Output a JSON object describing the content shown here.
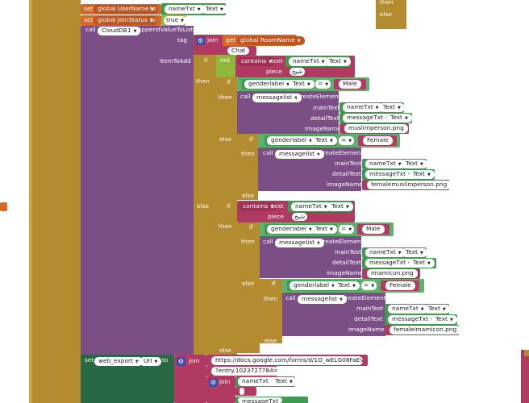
{
  "stub_right": {
    "then": "then",
    "else": "else"
  },
  "outer": {
    "else": "else"
  },
  "set1": {
    "kw": "set",
    "var": "global UserName",
    "to": "to",
    "comp": "nameTxt",
    "prop": "Text"
  },
  "set2": {
    "kw": "set",
    "var": "global JoinStatus",
    "to": "to",
    "val": "true"
  },
  "append": {
    "call": "call",
    "comp": "CloudDB1",
    "method": ".AppendValueToList",
    "tag": "tag",
    "itemToAdd": "itemToAdd"
  },
  "tagjoin": {
    "join": "join",
    "get": "get",
    "var": "global RoomName",
    "text": "Chat"
  },
  "if1": {
    "if": "if",
    "not": "not",
    "contains": "contains",
    "text": "text",
    "comp": "nameTxt",
    "prop": "Text",
    "piece": "piece",
    "piece_val": "شيخ",
    "then": "then",
    "else": "else"
  },
  "if2": {
    "if": "if",
    "comp": "genderlabel",
    "prop": "Text",
    "eq": "=",
    "val": "Male",
    "then": "then",
    "else": "else"
  },
  "ce1": {
    "call": "call",
    "comp": "messagelist",
    "method": ".CreateElement",
    "mainText": "mainText",
    "detailText": "detailText",
    "imageName": "imageName",
    "main_comp": "nameTxt",
    "detail_comp": "messageTxt",
    "prop": "Text",
    "image": "muslimperson.png"
  },
  "if3": {
    "if": "if",
    "comp": "genderlabel",
    "prop": "Text",
    "eq": "=",
    "val": "Female",
    "then": "then",
    "else": "else"
  },
  "ce2": {
    "call": "call",
    "comp": "messagelist",
    "method": ".CreateElement",
    "mainText": "mainText",
    "detailText": "detailText",
    "imageName": "imageName",
    "main_comp": "nameTxt",
    "detail_comp": "messageTxt",
    "prop": "Text",
    "image": "femalemuslimperson.png"
  },
  "if4": {
    "if": "if",
    "contains": "contains",
    "text": "text",
    "comp": "nameTxt",
    "prop": "Text",
    "piece": "piece",
    "piece_val": "شيخ",
    "then": "then",
    "else": "else"
  },
  "if5": {
    "if": "if",
    "comp": "genderlabel",
    "prop": "Text",
    "eq": "=",
    "val": "Male",
    "then": "then",
    "else": "else"
  },
  "ce3": {
    "call": "call",
    "comp": "messagelist",
    "method": ".CreateElement",
    "mainText": "mainText",
    "detailText": "detailText",
    "imageName": "imageName",
    "main_comp": "nameTxt",
    "detail_comp": "messageTxt",
    "prop": "Text",
    "image": "imamicon.png"
  },
  "if6": {
    "if": "if",
    "comp": "genderlabel",
    "prop": "Text",
    "eq": "=",
    "val": "Female",
    "then": "then",
    "else": "else"
  },
  "ce4": {
    "call": "call",
    "comp": "messagelist",
    "method": ".CreateElement",
    "mainText": "mainText",
    "detailText": "detailText",
    "imageName": "imageName",
    "main_comp": "nameTxt",
    "detail_comp": "messageTxt",
    "prop": "Text",
    "image": "femaleimamicon.png"
  },
  "setUrl": {
    "kw": "set",
    "comp": "web_export",
    "prop": "Url",
    "to": "to",
    "join": "join",
    "url": "https://docs.google.com/forms/d/1O_wELG08FaEVnlf...",
    "entry": "?entry.1023727784=",
    "join2": "join",
    "comp2": "nameTxt",
    "prop2": "Text",
    "comp3": "messageTxt"
  }
}
